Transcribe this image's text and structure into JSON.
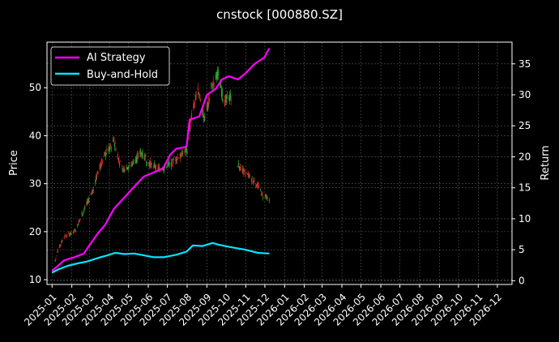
{
  "chart_data": {
    "type": "line",
    "title": "cnstock [000880.SZ]",
    "background": "#000000",
    "grid": true,
    "legend_position": "top-left",
    "x_axis": {
      "type": "date",
      "range": [
        "2024-12-24",
        "2026-12-24"
      ],
      "tick_labels": [
        "2025-01",
        "2025-02",
        "2025-03",
        "2025-04",
        "2025-05",
        "2025-06",
        "2025-07",
        "2025-08",
        "2025-09",
        "2025-10",
        "2025-11",
        "2025-12",
        "2026-01",
        "2026-02",
        "2026-03",
        "2026-04",
        "2026-05",
        "2026-06",
        "2026-07",
        "2026-08",
        "2026-09",
        "2026-10",
        "2026-11",
        "2026-12"
      ]
    },
    "y_left": {
      "label": "Price",
      "range": [
        9,
        59.5
      ],
      "ticks": [
        10,
        20,
        30,
        40,
        50
      ]
    },
    "y_right": {
      "label": "Return",
      "range": [
        -0.6,
        38.5
      ],
      "ticks": [
        0,
        5,
        10,
        15,
        20,
        25,
        30,
        35
      ]
    },
    "candles": {
      "up_color": "#2ca02c",
      "down_color": "#d62728",
      "anchors": [
        [
          "2025-01-02",
          11.8
        ],
        [
          "2025-01-10",
          16.0
        ],
        [
          "2025-01-20",
          19.0
        ],
        [
          "2025-02-05",
          20.0
        ],
        [
          "2025-02-20",
          24.5
        ],
        [
          "2025-03-05",
          28.0
        ],
        [
          "2025-03-15",
          33.0
        ],
        [
          "2025-03-25",
          36.0
        ],
        [
          "2025-04-08",
          39.0
        ],
        [
          "2025-04-20",
          33.0
        ],
        [
          "2025-05-05",
          34.0
        ],
        [
          "2025-05-20",
          36.5
        ],
        [
          "2025-06-05",
          34.0
        ],
        [
          "2025-06-20",
          33.0
        ],
        [
          "2025-07-05",
          34.0
        ],
        [
          "2025-07-20",
          36.0
        ],
        [
          "2025-08-01",
          37.0
        ],
        [
          "2025-08-08",
          44.0
        ],
        [
          "2025-08-18",
          50.0
        ],
        [
          "2025-08-28",
          43.0
        ],
        [
          "2025-09-08",
          50.0
        ],
        [
          "2025-09-18",
          53.0
        ],
        [
          "2025-09-28",
          47.0
        ],
        [
          "2025-10-08",
          48.0
        ],
        [
          "2025-10-20",
          34.0
        ],
        [
          "2025-11-01",
          32.0
        ],
        [
          "2025-11-15",
          30.5
        ],
        [
          "2025-11-28",
          27.5
        ],
        [
          "2025-12-08",
          26.5
        ]
      ],
      "gap": [
        "2025-10-10",
        "2025-10-18"
      ]
    },
    "series": [
      {
        "name": "AI Strategy",
        "axis": "right",
        "color": "#ff00ff",
        "points": [
          [
            "2025-01-01",
            1.6
          ],
          [
            "2025-01-10",
            2.4
          ],
          [
            "2025-01-20",
            3.3
          ],
          [
            "2025-02-05",
            3.8
          ],
          [
            "2025-02-20",
            4.4
          ],
          [
            "2025-03-01",
            5.8
          ],
          [
            "2025-03-15",
            7.8
          ],
          [
            "2025-03-25",
            9.0
          ],
          [
            "2025-04-08",
            11.6
          ],
          [
            "2025-04-25",
            13.5
          ],
          [
            "2025-05-10",
            15.2
          ],
          [
            "2025-05-25",
            16.8
          ],
          [
            "2025-06-10",
            17.5
          ],
          [
            "2025-06-25",
            18.2
          ],
          [
            "2025-07-05",
            20.3
          ],
          [
            "2025-07-15",
            21.3
          ],
          [
            "2025-07-31",
            21.6
          ],
          [
            "2025-08-05",
            26.0
          ],
          [
            "2025-08-20",
            26.5
          ],
          [
            "2025-09-01",
            30.0
          ],
          [
            "2025-09-15",
            31.0
          ],
          [
            "2025-09-25",
            32.5
          ],
          [
            "2025-10-05",
            33.0
          ],
          [
            "2025-10-20",
            32.5
          ],
          [
            "2025-11-01",
            33.5
          ],
          [
            "2025-11-15",
            35.0
          ],
          [
            "2025-11-30",
            36.0
          ],
          [
            "2025-12-08",
            37.5
          ]
        ]
      },
      {
        "name": "Buy-and-Hold",
        "axis": "right",
        "color": "#00e5ff",
        "points": [
          [
            "2025-01-01",
            1.3
          ],
          [
            "2025-01-10",
            1.8
          ],
          [
            "2025-01-25",
            2.4
          ],
          [
            "2025-02-10",
            2.8
          ],
          [
            "2025-02-25",
            3.1
          ],
          [
            "2025-03-15",
            3.7
          ],
          [
            "2025-04-01",
            4.2
          ],
          [
            "2025-04-10",
            4.5
          ],
          [
            "2025-04-25",
            4.3
          ],
          [
            "2025-05-10",
            4.4
          ],
          [
            "2025-05-25",
            4.1
          ],
          [
            "2025-06-10",
            3.8
          ],
          [
            "2025-06-25",
            3.8
          ],
          [
            "2025-07-15",
            4.2
          ],
          [
            "2025-07-31",
            4.7
          ],
          [
            "2025-08-10",
            5.7
          ],
          [
            "2025-08-25",
            5.6
          ],
          [
            "2025-09-10",
            6.1
          ],
          [
            "2025-09-20",
            5.8
          ],
          [
            "2025-10-05",
            5.5
          ],
          [
            "2025-10-20",
            5.2
          ],
          [
            "2025-11-01",
            5.0
          ],
          [
            "2025-11-20",
            4.5
          ],
          [
            "2025-12-08",
            4.4
          ]
        ]
      }
    ]
  }
}
